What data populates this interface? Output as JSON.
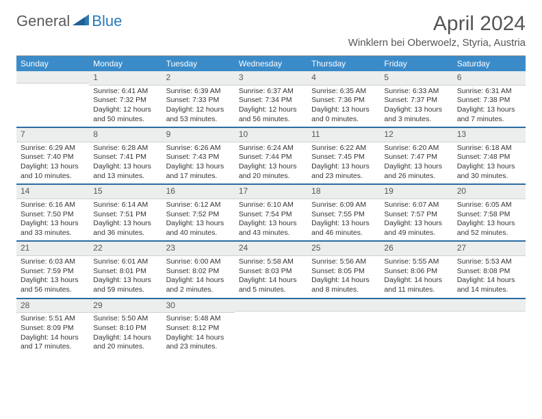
{
  "logo": {
    "part1": "General",
    "part2": "Blue"
  },
  "title": "April 2024",
  "location": "Winklern bei Oberwoelz, Styria, Austria",
  "colors": {
    "header_bg": "#3b8bc9",
    "week_divider": "#2a6aa0",
    "daynum_bg": "#eceded",
    "logo_gray": "#5a5a5a",
    "logo_blue": "#2a7ab8"
  },
  "dayNames": [
    "Sunday",
    "Monday",
    "Tuesday",
    "Wednesday",
    "Thursday",
    "Friday",
    "Saturday"
  ],
  "weeks": [
    [
      {
        "n": "",
        "sr": "",
        "ss": "",
        "dl": ""
      },
      {
        "n": "1",
        "sr": "Sunrise: 6:41 AM",
        "ss": "Sunset: 7:32 PM",
        "dl": "Daylight: 12 hours and 50 minutes."
      },
      {
        "n": "2",
        "sr": "Sunrise: 6:39 AM",
        "ss": "Sunset: 7:33 PM",
        "dl": "Daylight: 12 hours and 53 minutes."
      },
      {
        "n": "3",
        "sr": "Sunrise: 6:37 AM",
        "ss": "Sunset: 7:34 PM",
        "dl": "Daylight: 12 hours and 56 minutes."
      },
      {
        "n": "4",
        "sr": "Sunrise: 6:35 AM",
        "ss": "Sunset: 7:36 PM",
        "dl": "Daylight: 13 hours and 0 minutes."
      },
      {
        "n": "5",
        "sr": "Sunrise: 6:33 AM",
        "ss": "Sunset: 7:37 PM",
        "dl": "Daylight: 13 hours and 3 minutes."
      },
      {
        "n": "6",
        "sr": "Sunrise: 6:31 AM",
        "ss": "Sunset: 7:38 PM",
        "dl": "Daylight: 13 hours and 7 minutes."
      }
    ],
    [
      {
        "n": "7",
        "sr": "Sunrise: 6:29 AM",
        "ss": "Sunset: 7:40 PM",
        "dl": "Daylight: 13 hours and 10 minutes."
      },
      {
        "n": "8",
        "sr": "Sunrise: 6:28 AM",
        "ss": "Sunset: 7:41 PM",
        "dl": "Daylight: 13 hours and 13 minutes."
      },
      {
        "n": "9",
        "sr": "Sunrise: 6:26 AM",
        "ss": "Sunset: 7:43 PM",
        "dl": "Daylight: 13 hours and 17 minutes."
      },
      {
        "n": "10",
        "sr": "Sunrise: 6:24 AM",
        "ss": "Sunset: 7:44 PM",
        "dl": "Daylight: 13 hours and 20 minutes."
      },
      {
        "n": "11",
        "sr": "Sunrise: 6:22 AM",
        "ss": "Sunset: 7:45 PM",
        "dl": "Daylight: 13 hours and 23 minutes."
      },
      {
        "n": "12",
        "sr": "Sunrise: 6:20 AM",
        "ss": "Sunset: 7:47 PM",
        "dl": "Daylight: 13 hours and 26 minutes."
      },
      {
        "n": "13",
        "sr": "Sunrise: 6:18 AM",
        "ss": "Sunset: 7:48 PM",
        "dl": "Daylight: 13 hours and 30 minutes."
      }
    ],
    [
      {
        "n": "14",
        "sr": "Sunrise: 6:16 AM",
        "ss": "Sunset: 7:50 PM",
        "dl": "Daylight: 13 hours and 33 minutes."
      },
      {
        "n": "15",
        "sr": "Sunrise: 6:14 AM",
        "ss": "Sunset: 7:51 PM",
        "dl": "Daylight: 13 hours and 36 minutes."
      },
      {
        "n": "16",
        "sr": "Sunrise: 6:12 AM",
        "ss": "Sunset: 7:52 PM",
        "dl": "Daylight: 13 hours and 40 minutes."
      },
      {
        "n": "17",
        "sr": "Sunrise: 6:10 AM",
        "ss": "Sunset: 7:54 PM",
        "dl": "Daylight: 13 hours and 43 minutes."
      },
      {
        "n": "18",
        "sr": "Sunrise: 6:09 AM",
        "ss": "Sunset: 7:55 PM",
        "dl": "Daylight: 13 hours and 46 minutes."
      },
      {
        "n": "19",
        "sr": "Sunrise: 6:07 AM",
        "ss": "Sunset: 7:57 PM",
        "dl": "Daylight: 13 hours and 49 minutes."
      },
      {
        "n": "20",
        "sr": "Sunrise: 6:05 AM",
        "ss": "Sunset: 7:58 PM",
        "dl": "Daylight: 13 hours and 52 minutes."
      }
    ],
    [
      {
        "n": "21",
        "sr": "Sunrise: 6:03 AM",
        "ss": "Sunset: 7:59 PM",
        "dl": "Daylight: 13 hours and 56 minutes."
      },
      {
        "n": "22",
        "sr": "Sunrise: 6:01 AM",
        "ss": "Sunset: 8:01 PM",
        "dl": "Daylight: 13 hours and 59 minutes."
      },
      {
        "n": "23",
        "sr": "Sunrise: 6:00 AM",
        "ss": "Sunset: 8:02 PM",
        "dl": "Daylight: 14 hours and 2 minutes."
      },
      {
        "n": "24",
        "sr": "Sunrise: 5:58 AM",
        "ss": "Sunset: 8:03 PM",
        "dl": "Daylight: 14 hours and 5 minutes."
      },
      {
        "n": "25",
        "sr": "Sunrise: 5:56 AM",
        "ss": "Sunset: 8:05 PM",
        "dl": "Daylight: 14 hours and 8 minutes."
      },
      {
        "n": "26",
        "sr": "Sunrise: 5:55 AM",
        "ss": "Sunset: 8:06 PM",
        "dl": "Daylight: 14 hours and 11 minutes."
      },
      {
        "n": "27",
        "sr": "Sunrise: 5:53 AM",
        "ss": "Sunset: 8:08 PM",
        "dl": "Daylight: 14 hours and 14 minutes."
      }
    ],
    [
      {
        "n": "28",
        "sr": "Sunrise: 5:51 AM",
        "ss": "Sunset: 8:09 PM",
        "dl": "Daylight: 14 hours and 17 minutes."
      },
      {
        "n": "29",
        "sr": "Sunrise: 5:50 AM",
        "ss": "Sunset: 8:10 PM",
        "dl": "Daylight: 14 hours and 20 minutes."
      },
      {
        "n": "30",
        "sr": "Sunrise: 5:48 AM",
        "ss": "Sunset: 8:12 PM",
        "dl": "Daylight: 14 hours and 23 minutes."
      },
      {
        "n": "",
        "sr": "",
        "ss": "",
        "dl": ""
      },
      {
        "n": "",
        "sr": "",
        "ss": "",
        "dl": ""
      },
      {
        "n": "",
        "sr": "",
        "ss": "",
        "dl": ""
      },
      {
        "n": "",
        "sr": "",
        "ss": "",
        "dl": ""
      }
    ]
  ]
}
